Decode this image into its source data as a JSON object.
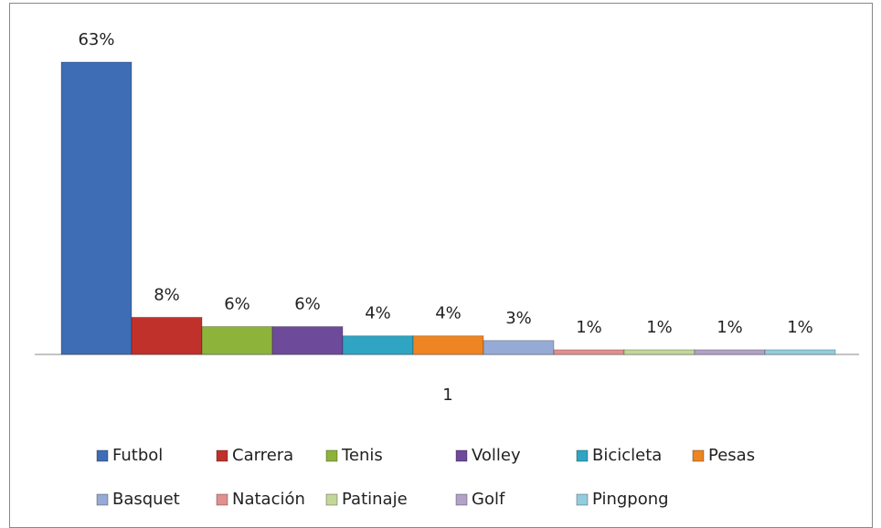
{
  "chart_data": {
    "type": "bar",
    "categories": [
      "1"
    ],
    "series": [
      {
        "name": "Futbol",
        "color": "#3e6db5",
        "values": [
          63
        ],
        "value_labels": [
          "63%"
        ]
      },
      {
        "name": "Carrera",
        "color": "#c0312c",
        "values": [
          8
        ],
        "value_labels": [
          "8%"
        ]
      },
      {
        "name": "Tenis",
        "color": "#8db33b",
        "values": [
          6
        ],
        "value_labels": [
          "6%"
        ]
      },
      {
        "name": "Volley",
        "color": "#6e4a9b",
        "values": [
          6
        ],
        "value_labels": [
          "6%"
        ]
      },
      {
        "name": "Bicicleta",
        "color": "#2fa5c3",
        "values": [
          4
        ],
        "value_labels": [
          "4%"
        ]
      },
      {
        "name": "Pesas",
        "color": "#ee8422",
        "values": [
          4
        ],
        "value_labels": [
          "4%"
        ]
      },
      {
        "name": "Basquet",
        "color": "#95abd5",
        "values": [
          3
        ],
        "value_labels": [
          "3%"
        ]
      },
      {
        "name": "Natación",
        "color": "#e0908f",
        "values": [
          1
        ],
        "value_labels": [
          "1%"
        ]
      },
      {
        "name": "Patinaje",
        "color": "#c3d79b",
        "values": [
          1
        ],
        "value_labels": [
          "1%"
        ]
      },
      {
        "name": "Golf",
        "color": "#b3a2c7",
        "values": [
          1
        ],
        "value_labels": [
          "1%"
        ]
      },
      {
        "name": "Pingpong",
        "color": "#93cddd",
        "values": [
          1
        ],
        "value_labels": [
          "1%"
        ]
      }
    ]
  }
}
